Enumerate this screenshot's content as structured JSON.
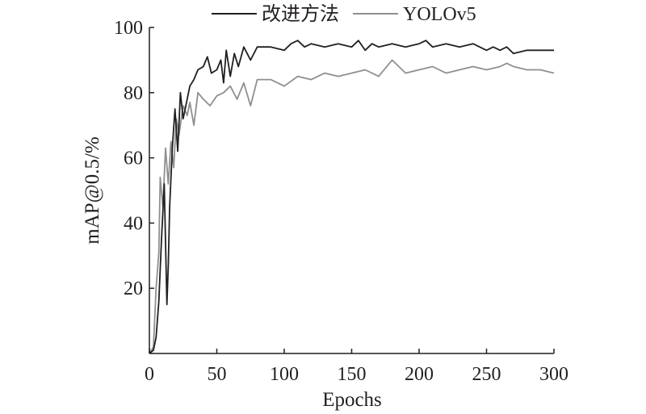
{
  "chart_data": {
    "type": "line",
    "xlabel": "Epochs",
    "ylabel": "mAP@0.5/%",
    "xlim": [
      0,
      300
    ],
    "ylim": [
      0,
      100
    ],
    "x_ticks": [
      0,
      50,
      100,
      150,
      200,
      250,
      300
    ],
    "y_ticks": [
      20,
      40,
      60,
      80,
      100
    ],
    "grid": false,
    "legend_position": "top",
    "series": [
      {
        "name": "改进方法",
        "color": "#231f20",
        "x": [
          0,
          3,
          5,
          7,
          9,
          11,
          13,
          14,
          15,
          17,
          19,
          21,
          23,
          25,
          28,
          30,
          33,
          36,
          40,
          43,
          46,
          50,
          53,
          55,
          57,
          60,
          63,
          66,
          70,
          75,
          80,
          90,
          100,
          105,
          110,
          115,
          120,
          130,
          140,
          150,
          155,
          160,
          165,
          170,
          180,
          190,
          200,
          205,
          210,
          220,
          230,
          240,
          250,
          255,
          260,
          265,
          270,
          280,
          290,
          300
        ],
        "y": [
          0,
          1,
          5,
          16,
          35,
          52,
          15,
          27,
          45,
          63,
          75,
          62,
          80,
          72,
          78,
          82,
          84,
          87,
          88,
          91,
          86,
          87,
          90,
          83,
          93,
          85,
          92,
          88,
          94,
          90,
          94,
          94,
          93,
          95,
          96,
          94,
          95,
          94,
          95,
          94,
          96,
          93,
          95,
          94,
          95,
          94,
          95,
          96,
          94,
          95,
          94,
          95,
          93,
          94,
          93,
          94,
          92,
          93,
          93,
          93
        ]
      },
      {
        "name": "YOLOv5",
        "color": "#8f8f8f",
        "x": [
          0,
          3,
          5,
          7,
          8,
          10,
          12,
          14,
          16,
          18,
          20,
          22,
          25,
          28,
          30,
          33,
          36,
          40,
          45,
          50,
          55,
          60,
          65,
          70,
          75,
          80,
          90,
          100,
          110,
          120,
          130,
          140,
          150,
          160,
          170,
          180,
          190,
          200,
          210,
          220,
          230,
          240,
          250,
          260,
          265,
          270,
          280,
          290,
          300
        ],
        "y": [
          0,
          2,
          20,
          31,
          54,
          45,
          63,
          52,
          65,
          57,
          72,
          67,
          76,
          73,
          77,
          70,
          80,
          78,
          76,
          79,
          80,
          82,
          78,
          83,
          76,
          84,
          84,
          82,
          85,
          84,
          86,
          85,
          86,
          87,
          85,
          90,
          86,
          87,
          88,
          86,
          87,
          88,
          87,
          88,
          89,
          88,
          87,
          87,
          86
        ]
      }
    ]
  }
}
